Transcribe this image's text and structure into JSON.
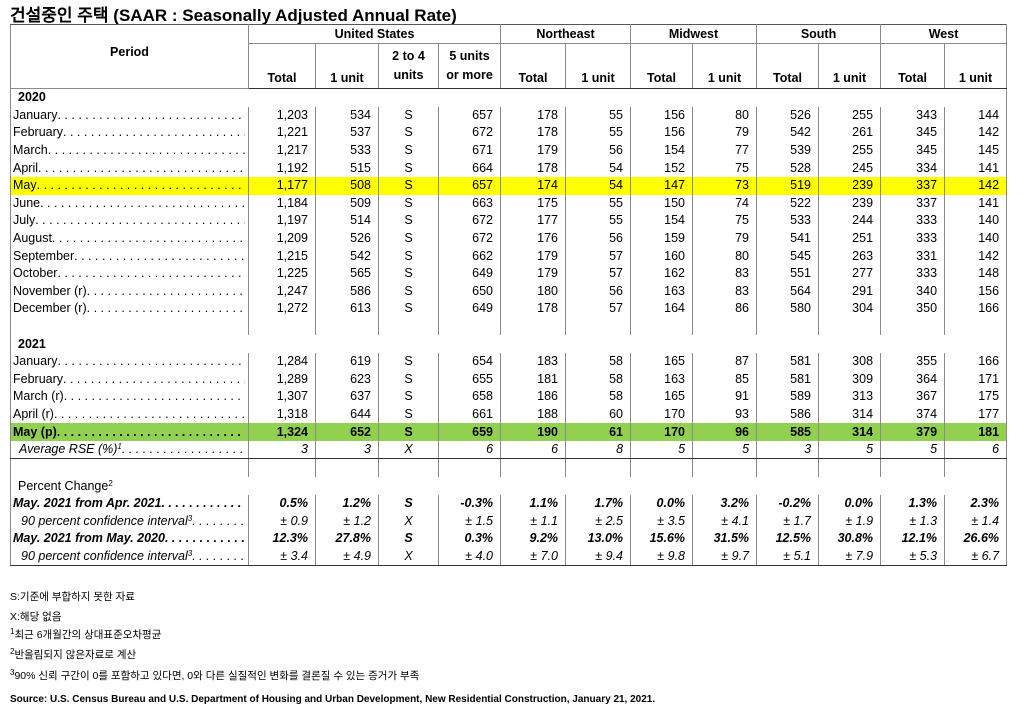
{
  "title": "건설중인 주택 (SAAR : Seasonally Adjusted Annual Rate)",
  "header": {
    "period": "Period",
    "groups": [
      "United States",
      "Northeast",
      "Midwest",
      "South",
      "West"
    ],
    "columns": [
      "Total",
      "1 unit",
      "2 to 4 units",
      "5 units or more",
      "Total",
      "1 unit",
      "Total",
      "1 unit",
      "Total",
      "1 unit",
      "Total",
      "1 unit"
    ]
  },
  "sections": [
    {
      "title": "2020",
      "rows": [
        {
          "label": "January",
          "cells": [
            "1,203",
            "534",
            "S",
            "657",
            "178",
            "55",
            "156",
            "80",
            "526",
            "255",
            "343",
            "144"
          ]
        },
        {
          "label": "February",
          "cells": [
            "1,221",
            "537",
            "S",
            "672",
            "178",
            "55",
            "156",
            "79",
            "542",
            "261",
            "345",
            "142"
          ]
        },
        {
          "label": "March",
          "cells": [
            "1,217",
            "533",
            "S",
            "671",
            "179",
            "56",
            "154",
            "77",
            "539",
            "255",
            "345",
            "145"
          ]
        },
        {
          "label": "April",
          "cells": [
            "1,192",
            "515",
            "S",
            "664",
            "178",
            "54",
            "152",
            "75",
            "528",
            "245",
            "334",
            "141"
          ]
        },
        {
          "label": "May",
          "cells": [
            "1,177",
            "508",
            "S",
            "657",
            "174",
            "54",
            "147",
            "73",
            "519",
            "239",
            "337",
            "142"
          ]
        },
        {
          "label": "June",
          "cells": [
            "1,184",
            "509",
            "S",
            "663",
            "175",
            "55",
            "150",
            "74",
            "522",
            "239",
            "337",
            "141"
          ]
        },
        {
          "label": "July",
          "cells": [
            "1,197",
            "514",
            "S",
            "672",
            "177",
            "55",
            "154",
            "75",
            "533",
            "244",
            "333",
            "140"
          ]
        },
        {
          "label": "August",
          "cells": [
            "1,209",
            "526",
            "S",
            "672",
            "176",
            "56",
            "159",
            "79",
            "541",
            "251",
            "333",
            "140"
          ]
        },
        {
          "label": "September",
          "cells": [
            "1,215",
            "542",
            "S",
            "662",
            "179",
            "57",
            "160",
            "80",
            "545",
            "263",
            "331",
            "142"
          ]
        },
        {
          "label": "October",
          "cells": [
            "1,225",
            "565",
            "S",
            "649",
            "179",
            "57",
            "162",
            "83",
            "551",
            "277",
            "333",
            "148"
          ]
        },
        {
          "label": "November (r)",
          "cells": [
            "1,247",
            "586",
            "S",
            "650",
            "180",
            "56",
            "163",
            "83",
            "564",
            "291",
            "340",
            "156"
          ]
        },
        {
          "label": "December (r)",
          "cells": [
            "1,272",
            "613",
            "S",
            "649",
            "178",
            "57",
            "164",
            "86",
            "580",
            "304",
            "350",
            "166"
          ]
        }
      ]
    },
    {
      "title": "2021",
      "rows": [
        {
          "label": "January",
          "cells": [
            "1,284",
            "619",
            "S",
            "654",
            "183",
            "58",
            "165",
            "87",
            "581",
            "308",
            "355",
            "166"
          ]
        },
        {
          "label": "February",
          "cells": [
            "1,289",
            "623",
            "S",
            "655",
            "181",
            "58",
            "163",
            "85",
            "581",
            "309",
            "364",
            "171"
          ]
        },
        {
          "label": "March (r)",
          "cells": [
            "1,307",
            "637",
            "S",
            "658",
            "186",
            "58",
            "165",
            "91",
            "589",
            "313",
            "367",
            "175"
          ]
        },
        {
          "label": "April (r)",
          "cells": [
            "1,318",
            "644",
            "S",
            "661",
            "188",
            "60",
            "170",
            "93",
            "586",
            "314",
            "374",
            "177"
          ]
        },
        {
          "label": "May (p)",
          "cells": [
            "1,324",
            "652",
            "S",
            "659",
            "190",
            "61",
            "170",
            "96",
            "585",
            "314",
            "379",
            "181"
          ]
        },
        {
          "label": "Average RSE (%)",
          "note": "1",
          "cells": [
            "3",
            "3",
            "X",
            "6",
            "6",
            "8",
            "5",
            "5",
            "3",
            "5",
            "5",
            "6"
          ]
        }
      ]
    },
    {
      "title": "Percent Change",
      "note": "2",
      "rows": [
        {
          "label": "May. 2021 from Apr. 2021",
          "cells": [
            "0.5%",
            "1.2%",
            "S",
            "-0.3%",
            "1.1%",
            "1.7%",
            "0.0%",
            "3.2%",
            "-0.2%",
            "0.0%",
            "1.3%",
            "2.3%"
          ]
        },
        {
          "label": "90 percent confidence interval",
          "note": "3",
          "cells": [
            "± 0.9",
            "± 1.2",
            "X",
            "± 1.5",
            "± 1.1",
            "± 2.5",
            "± 3.5",
            "± 4.1",
            "± 1.7",
            "± 1.9",
            "± 1.3",
            "± 1.4"
          ]
        },
        {
          "label": "May. 2021 from May. 2020",
          "cells": [
            "12.3%",
            "27.8%",
            "S",
            "0.3%",
            "9.2%",
            "13.0%",
            "15.6%",
            "31.5%",
            "12.5%",
            "30.8%",
            "12.1%",
            "26.6%"
          ]
        },
        {
          "label": "90 percent confidence interval",
          "note": "3",
          "cells": [
            "± 3.4",
            "± 4.9",
            "X",
            "± 4.0",
            "± 7.0",
            "± 9.4",
            "± 9.8",
            "± 9.7",
            "± 5.1",
            "± 7.9",
            "± 5.3",
            "± 6.7"
          ]
        }
      ]
    }
  ],
  "footnotes": [
    {
      "text": "S:기준에 부합하지 못한 자료"
    },
    {
      "text": "X:해당 없음"
    },
    {
      "mark": "1",
      "text": "최근 6개월간의 상대표준오차평균"
    },
    {
      "mark": "2",
      "text": "반올림되지 않은자료로 계산"
    },
    {
      "mark": "3",
      "text": "90% 신뢰 구간이 0를 포함하고 있다면, 0와 다른 실질적인 변화를 결론질 수 있는 증거가 부족"
    }
  ],
  "source": "Source: U.S. Census Bureau and U.S. Department of Housing and Urban Development, New Residential Construction, January 21, 2021."
}
